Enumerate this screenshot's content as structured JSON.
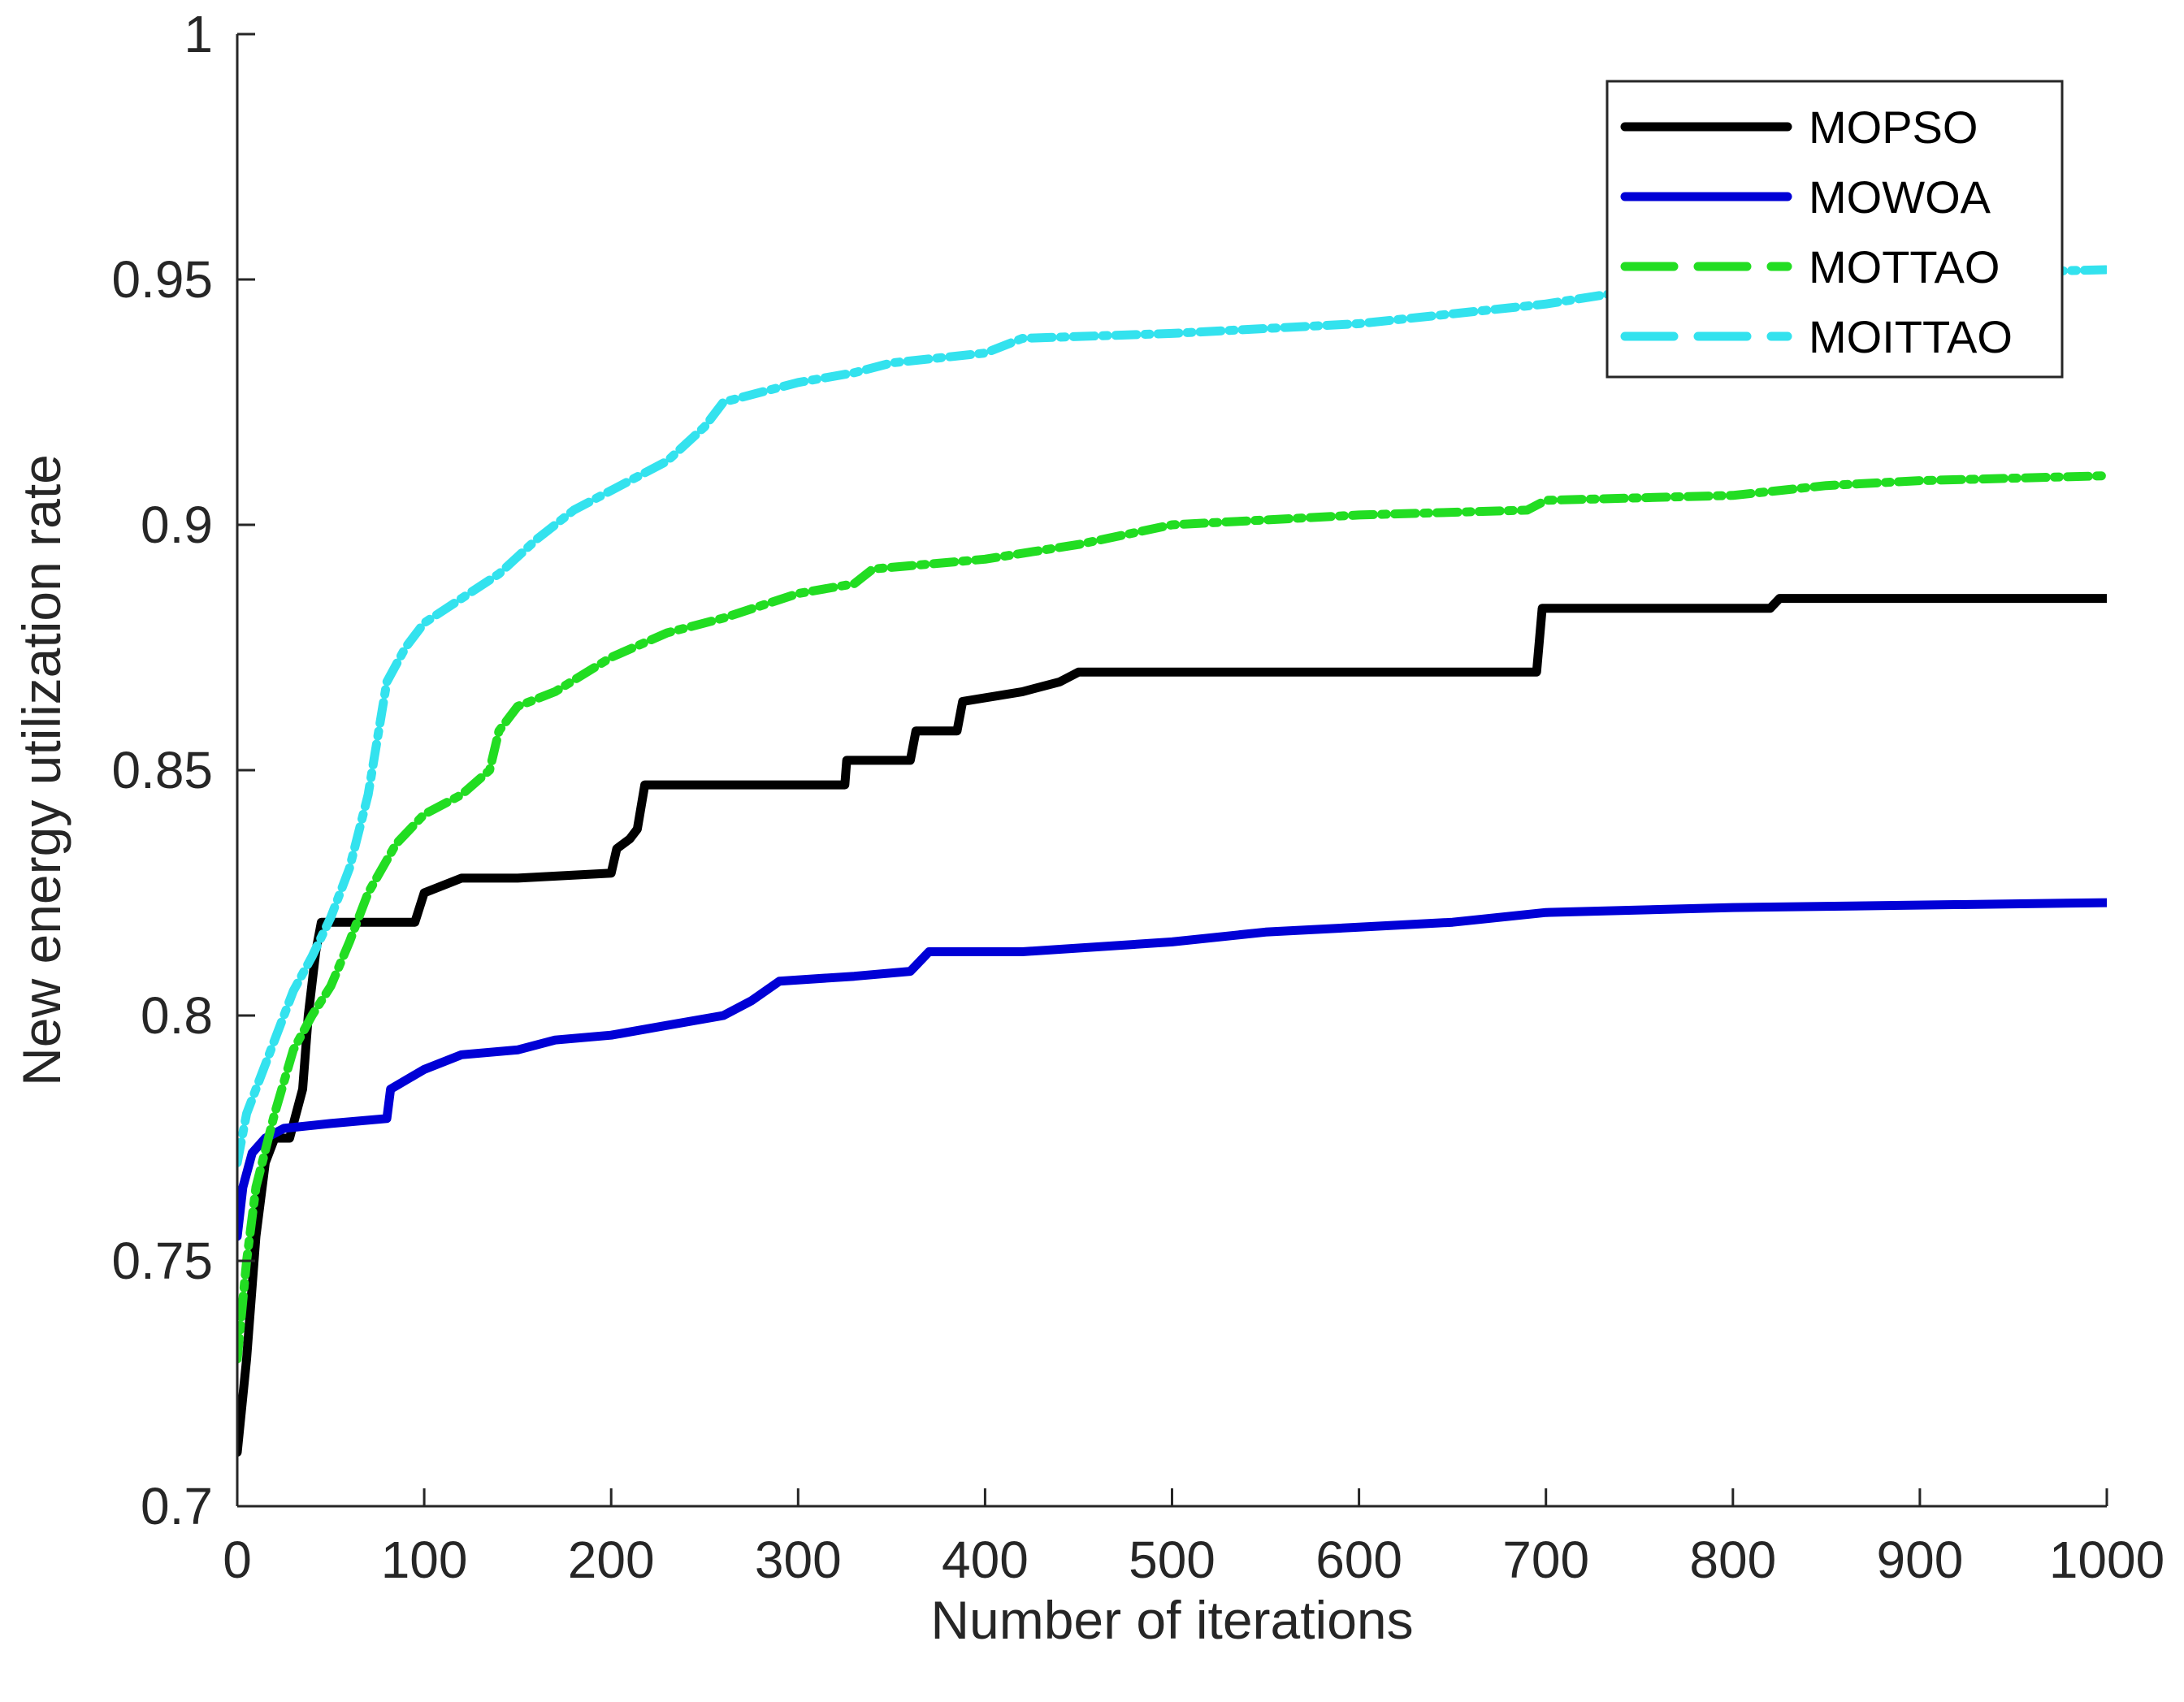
{
  "chart_data": {
    "type": "line",
    "title": "",
    "xlabel": "Number of iterations",
    "ylabel": "New energy utilization rate",
    "xlim": [
      0,
      1000
    ],
    "ylim": [
      0.7,
      1
    ],
    "xticks": [
      0,
      100,
      200,
      300,
      400,
      500,
      600,
      700,
      800,
      900,
      1000
    ],
    "yticks": [
      0.7,
      0.75,
      0.8,
      0.85,
      0.9,
      0.95,
      1
    ],
    "xtick_labels": [
      "0",
      "100",
      "200",
      "300",
      "400",
      "500",
      "600",
      "700",
      "800",
      "900",
      "1000"
    ],
    "ytick_labels": [
      "0.7",
      "0.75",
      "0.8",
      "0.85",
      "0.9",
      "0.95",
      "1"
    ],
    "grid": false,
    "legend_position": "top-right",
    "series": [
      {
        "name": "MOPSO",
        "color": "#000000",
        "style": "solid",
        "points": [
          [
            0,
            0.711
          ],
          [
            5,
            0.73
          ],
          [
            10,
            0.755
          ],
          [
            15,
            0.77
          ],
          [
            20,
            0.775
          ],
          [
            28,
            0.775
          ],
          [
            35,
            0.785
          ],
          [
            38,
            0.8
          ],
          [
            42,
            0.813
          ],
          [
            45,
            0.819
          ],
          [
            95,
            0.819
          ],
          [
            100,
            0.825
          ],
          [
            120,
            0.828
          ],
          [
            150,
            0.828
          ],
          [
            200,
            0.829
          ],
          [
            203,
            0.834
          ],
          [
            210,
            0.836
          ],
          [
            214,
            0.838
          ],
          [
            218,
            0.847
          ],
          [
            325,
            0.847
          ],
          [
            326,
            0.852
          ],
          [
            360,
            0.852
          ],
          [
            363,
            0.858
          ],
          [
            385,
            0.858
          ],
          [
            388,
            0.864
          ],
          [
            420,
            0.866
          ],
          [
            440,
            0.868
          ],
          [
            450,
            0.87
          ],
          [
            695,
            0.87
          ],
          [
            698,
            0.883
          ],
          [
            820,
            0.883
          ],
          [
            825,
            0.885
          ],
          [
            1000,
            0.885
          ]
        ]
      },
      {
        "name": "MOWOA",
        "color": "#0000d6",
        "style": "solid",
        "points": [
          [
            0,
            0.755
          ],
          [
            3,
            0.765
          ],
          [
            8,
            0.772
          ],
          [
            15,
            0.775
          ],
          [
            25,
            0.777
          ],
          [
            50,
            0.778
          ],
          [
            80,
            0.779
          ],
          [
            82,
            0.785
          ],
          [
            100,
            0.789
          ],
          [
            120,
            0.792
          ],
          [
            150,
            0.793
          ],
          [
            170,
            0.795
          ],
          [
            200,
            0.796
          ],
          [
            230,
            0.798
          ],
          [
            260,
            0.8
          ],
          [
            275,
            0.803
          ],
          [
            290,
            0.807
          ],
          [
            330,
            0.808
          ],
          [
            360,
            0.809
          ],
          [
            370,
            0.813
          ],
          [
            420,
            0.813
          ],
          [
            500,
            0.815
          ],
          [
            550,
            0.817
          ],
          [
            600,
            0.818
          ],
          [
            650,
            0.819
          ],
          [
            700,
            0.821
          ],
          [
            800,
            0.822
          ],
          [
            1000,
            0.823
          ]
        ]
      },
      {
        "name": "MOTTAO",
        "color": "#22dd22",
        "style": "dashed",
        "points": [
          [
            0,
            0.73
          ],
          [
            5,
            0.75
          ],
          [
            10,
            0.765
          ],
          [
            20,
            0.78
          ],
          [
            30,
            0.793
          ],
          [
            40,
            0.8
          ],
          [
            50,
            0.806
          ],
          [
            60,
            0.815
          ],
          [
            70,
            0.825
          ],
          [
            85,
            0.835
          ],
          [
            100,
            0.841
          ],
          [
            120,
            0.845
          ],
          [
            135,
            0.85
          ],
          [
            140,
            0.858
          ],
          [
            150,
            0.863
          ],
          [
            170,
            0.866
          ],
          [
            200,
            0.873
          ],
          [
            230,
            0.878
          ],
          [
            260,
            0.881
          ],
          [
            300,
            0.886
          ],
          [
            330,
            0.888
          ],
          [
            340,
            0.891
          ],
          [
            400,
            0.893
          ],
          [
            450,
            0.896
          ],
          [
            500,
            0.9
          ],
          [
            550,
            0.901
          ],
          [
            600,
            0.902
          ],
          [
            690,
            0.903
          ],
          [
            700,
            0.905
          ],
          [
            800,
            0.906
          ],
          [
            850,
            0.908
          ],
          [
            900,
            0.909
          ],
          [
            1000,
            0.91
          ]
        ]
      },
      {
        "name": "MOITTAO",
        "color": "#33e2ee",
        "style": "dashed",
        "points": [
          [
            0,
            0.77
          ],
          [
            5,
            0.78
          ],
          [
            10,
            0.785
          ],
          [
            20,
            0.795
          ],
          [
            30,
            0.805
          ],
          [
            40,
            0.812
          ],
          [
            50,
            0.82
          ],
          [
            60,
            0.83
          ],
          [
            70,
            0.845
          ],
          [
            80,
            0.868
          ],
          [
            90,
            0.875
          ],
          [
            100,
            0.88
          ],
          [
            120,
            0.885
          ],
          [
            140,
            0.89
          ],
          [
            160,
            0.897
          ],
          [
            180,
            0.903
          ],
          [
            200,
            0.907
          ],
          [
            230,
            0.913
          ],
          [
            250,
            0.92
          ],
          [
            260,
            0.925
          ],
          [
            300,
            0.929
          ],
          [
            330,
            0.931
          ],
          [
            350,
            0.933
          ],
          [
            400,
            0.935
          ],
          [
            420,
            0.938
          ],
          [
            500,
            0.939
          ],
          [
            600,
            0.941
          ],
          [
            700,
            0.945
          ],
          [
            750,
            0.948
          ],
          [
            800,
            0.949
          ],
          [
            900,
            0.951
          ],
          [
            1000,
            0.952
          ]
        ]
      }
    ]
  }
}
